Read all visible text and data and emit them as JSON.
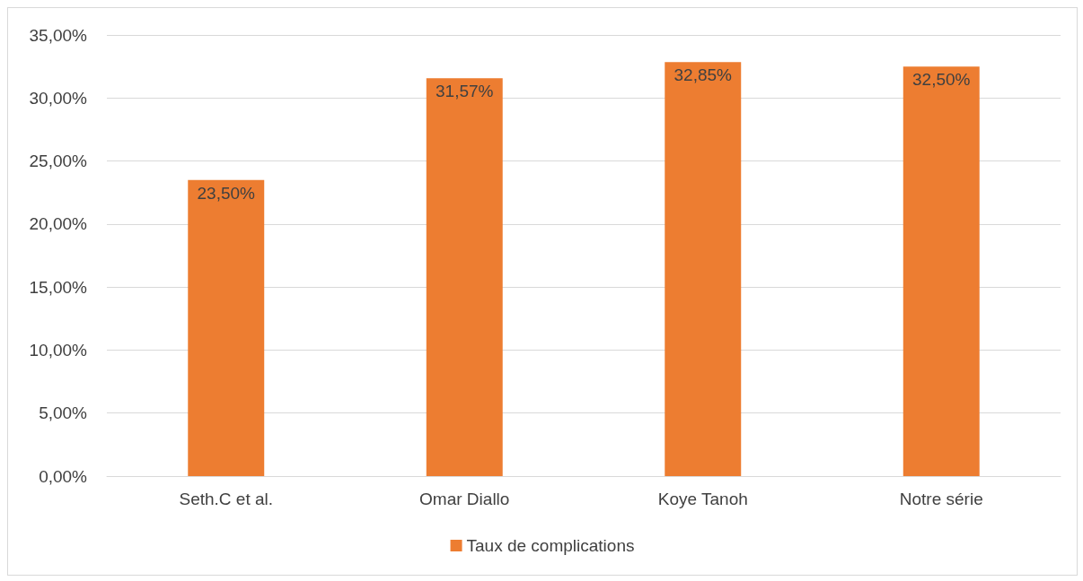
{
  "chart_data": {
    "type": "bar",
    "categories": [
      "Seth.C et al.",
      "Omar Diallo",
      "Koye Tanoh",
      "Notre série"
    ],
    "series": [
      {
        "name": "Taux de complications",
        "color": "#ed7d31",
        "values": [
          23.5,
          31.57,
          32.85,
          32.5
        ],
        "value_labels": [
          "23,50%",
          "31,57%",
          "32,85%",
          "32,50%"
        ]
      }
    ],
    "ylim": [
      0,
      35
    ],
    "yticks": [
      {
        "value": 0,
        "label": "0,00%"
      },
      {
        "value": 5,
        "label": "5,00%"
      },
      {
        "value": 10,
        "label": "10,00%"
      },
      {
        "value": 15,
        "label": "15,00%"
      },
      {
        "value": 20,
        "label": "20,00%"
      },
      {
        "value": 25,
        "label": "25,00%"
      },
      {
        "value": 30,
        "label": "30,00%"
      },
      {
        "value": 35,
        "label": "35,00%"
      }
    ],
    "grid": "y",
    "legend": "bottom"
  }
}
